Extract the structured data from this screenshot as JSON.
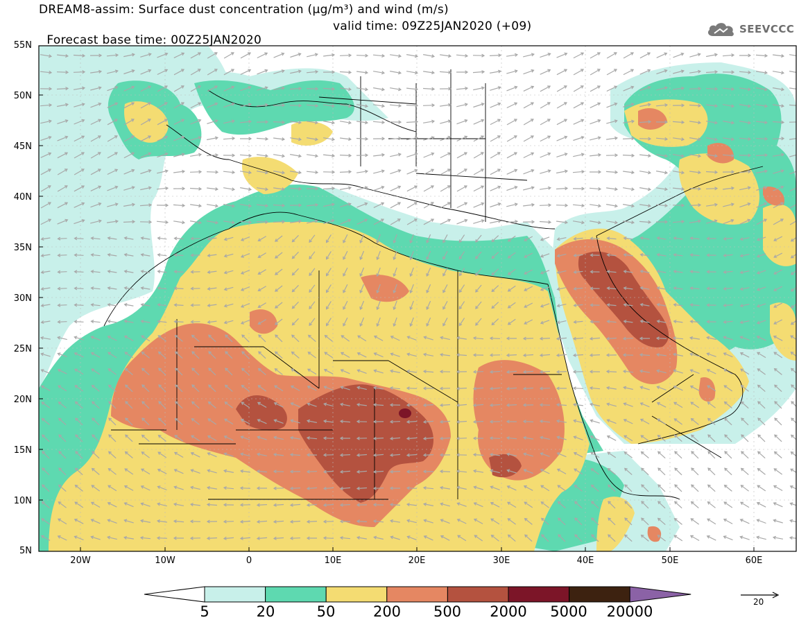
{
  "header": {
    "title_line1": "DREAM8-assim: Surface dust concentration (μg/m³) and wind (m/s)",
    "title_line2_left": "Forecast base time: 00Z25JAN2020",
    "title_line2_right": "valid time: 09Z25JAN2020 (+09)"
  },
  "logo": {
    "text": "SEEVCCC",
    "icon": "cloud-icon"
  },
  "map": {
    "lat_labels": [
      "55N",
      "50N",
      "45N",
      "40N",
      "35N",
      "30N",
      "25N",
      "20N",
      "15N",
      "10N",
      "5N"
    ],
    "lon_labels": [
      "20W",
      "10W",
      "0",
      "10E",
      "20E",
      "30E",
      "40E",
      "50E",
      "60E"
    ],
    "extent": {
      "lon_min": -25,
      "lon_max": 65,
      "lat_min": 5,
      "lat_max": 55
    }
  },
  "legend": {
    "labels": [
      "5",
      "20",
      "50",
      "200",
      "500",
      "2000",
      "5000",
      "20000"
    ],
    "colors": [
      "#ffffff",
      "#c8f0ea",
      "#5ed9b0",
      "#f4dc72",
      "#e58762",
      "#b4523f",
      "#7c1528",
      "#3d2210",
      "#8b62a6"
    ]
  },
  "wind_reference": {
    "label": "20",
    "units": "m/s"
  },
  "colors": {
    "land": "#f4dc72",
    "sea_light": "#c8f0ea",
    "sea_mid": "#5ed9b0",
    "high": "#e58762",
    "very_high": "#b4523f",
    "extreme": "#7c1528",
    "arrow": "#a8a8a8",
    "border": "#000000"
  }
}
